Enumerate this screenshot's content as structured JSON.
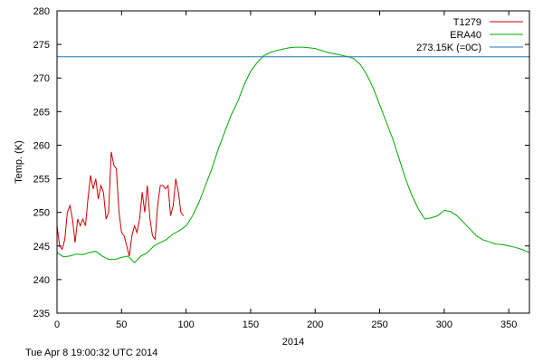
{
  "timestamp": "Tue Apr  8 19:00:32 UTC 2014",
  "chart_data": {
    "type": "line",
    "title": "",
    "xlabel": "2014",
    "ylabel": "Temp. (K)",
    "xlim": [
      0,
      366
    ],
    "ylim": [
      235,
      280
    ],
    "xticks": [
      0,
      50,
      100,
      150,
      200,
      250,
      300,
      350
    ],
    "yticks": [
      235,
      240,
      245,
      250,
      255,
      260,
      265,
      270,
      275,
      280
    ],
    "grid": false,
    "legend_position": "top-right",
    "series": [
      {
        "name": "T1279",
        "color": "#cc0000",
        "x": [
          0,
          2,
          4,
          6,
          8,
          10,
          12,
          14,
          16,
          18,
          20,
          22,
          24,
          26,
          28,
          30,
          32,
          34,
          36,
          38,
          40,
          42,
          44,
          46,
          48,
          50,
          52,
          54,
          56,
          58,
          60,
          62,
          64,
          66,
          68,
          70,
          72,
          74,
          76,
          78,
          80,
          82,
          84,
          86,
          88,
          90,
          92,
          94,
          96,
          98
        ],
        "y": [
          248,
          245,
          244.5,
          246,
          250,
          251,
          249,
          245.5,
          249,
          248,
          249,
          248,
          252,
          255.5,
          253.5,
          255,
          252,
          254,
          253,
          249,
          250,
          259,
          257,
          256.5,
          250,
          247,
          246.5,
          245,
          243.5,
          246.5,
          248,
          247,
          249,
          253,
          250,
          254,
          249,
          246.5,
          246,
          251,
          254,
          254,
          253.5,
          254,
          249.5,
          251,
          255,
          253,
          250,
          249.5
        ]
      },
      {
        "name": "ERA40",
        "color": "#00aa00",
        "x": [
          0,
          5,
          10,
          15,
          20,
          25,
          30,
          35,
          40,
          45,
          50,
          55,
          60,
          65,
          70,
          75,
          80,
          85,
          90,
          95,
          100,
          105,
          110,
          115,
          120,
          125,
          130,
          135,
          140,
          145,
          150,
          155,
          160,
          165,
          170,
          175,
          180,
          185,
          190,
          195,
          200,
          205,
          210,
          215,
          220,
          225,
          230,
          235,
          240,
          245,
          250,
          255,
          260,
          265,
          270,
          275,
          280,
          285,
          290,
          295,
          300,
          305,
          310,
          315,
          320,
          325,
          330,
          335,
          340,
          345,
          350,
          355,
          360,
          366
        ],
        "y": [
          244,
          243.4,
          243.5,
          243.8,
          243.7,
          244,
          244.2,
          243.5,
          243,
          243,
          243.3,
          243.5,
          242.5,
          243.5,
          244,
          245,
          245.5,
          246,
          246.8,
          247.3,
          248,
          249.5,
          251.5,
          254,
          256.5,
          259.5,
          262,
          264.5,
          266.5,
          269,
          271,
          272.3,
          273.3,
          273.8,
          274.1,
          274.3,
          274.5,
          274.6,
          274.6,
          274.5,
          274.4,
          274.1,
          273.8,
          273.6,
          273.4,
          273.2,
          272.9,
          272,
          270.5,
          268.5,
          266,
          263.5,
          261,
          258,
          255,
          252.5,
          250.5,
          249,
          249.2,
          249.5,
          250.3,
          250.1,
          249.5,
          248.5,
          247.5,
          246.5,
          245.9,
          245.6,
          245.3,
          245.2,
          245,
          244.8,
          244.5,
          244
        ]
      },
      {
        "name": "273.15K (=0C)",
        "color": "#1f77b4",
        "x": [
          0,
          366
        ],
        "y": [
          273.15,
          273.15
        ]
      }
    ]
  }
}
